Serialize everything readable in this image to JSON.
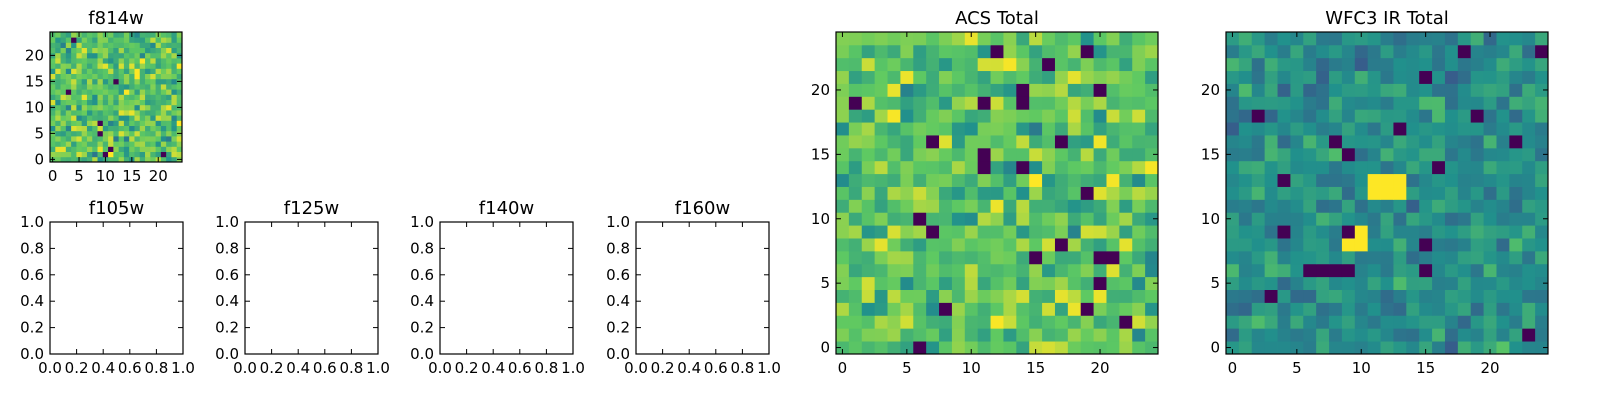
{
  "colors": {
    "viridis": [
      "#440154",
      "#3b528b",
      "#21918c",
      "#5ec962",
      "#fde725"
    ]
  },
  "chart_data": [
    {
      "type": "heatmap",
      "title": "f814w",
      "xticks": [
        "0",
        "5",
        "10",
        "15",
        "20"
      ],
      "yticks": [
        "0",
        "5",
        "10",
        "15",
        "20"
      ],
      "xlim": [
        -0.5,
        24.5
      ],
      "ylim": [
        -0.5,
        24.5
      ],
      "grid_size": [
        25,
        25
      ],
      "colormap": "viridis",
      "value_range": [
        0,
        1
      ],
      "typical_value": 0.72,
      "spread": 0.17,
      "dark_outlier_fraction": 0.02
    },
    {
      "type": "scatter",
      "title": "f105w",
      "xticks": [
        "0.0",
        "0.2",
        "0.4",
        "0.6",
        "0.8",
        "1.0"
      ],
      "yticks": [
        "0.0",
        "0.2",
        "0.4",
        "0.6",
        "0.8",
        "1.0"
      ],
      "xlim": [
        0,
        1
      ],
      "ylim": [
        0,
        1
      ],
      "series": []
    },
    {
      "type": "scatter",
      "title": "f125w",
      "xticks": [
        "0.0",
        "0.2",
        "0.4",
        "0.6",
        "0.8",
        "1.0"
      ],
      "yticks": [
        "0.0",
        "0.2",
        "0.4",
        "0.6",
        "0.8",
        "1.0"
      ],
      "xlim": [
        0,
        1
      ],
      "ylim": [
        0,
        1
      ],
      "series": []
    },
    {
      "type": "scatter",
      "title": "f140w",
      "xticks": [
        "0.0",
        "0.2",
        "0.4",
        "0.6",
        "0.8",
        "1.0"
      ],
      "yticks": [
        "0.0",
        "0.2",
        "0.4",
        "0.6",
        "0.8",
        "1.0"
      ],
      "xlim": [
        0,
        1
      ],
      "ylim": [
        0,
        1
      ],
      "series": []
    },
    {
      "type": "scatter",
      "title": "f160w",
      "xticks": [
        "0.0",
        "0.2",
        "0.4",
        "0.6",
        "0.8",
        "1.0"
      ],
      "yticks": [
        "0.0",
        "0.2",
        "0.4",
        "0.6",
        "0.8",
        "1.0"
      ],
      "xlim": [
        0,
        1
      ],
      "ylim": [
        0,
        1
      ],
      "series": []
    },
    {
      "type": "heatmap",
      "title": "ACS Total",
      "xticks": [
        "0",
        "5",
        "10",
        "15",
        "20"
      ],
      "yticks": [
        "0",
        "5",
        "10",
        "15",
        "20"
      ],
      "xlim": [
        -0.5,
        24.5
      ],
      "ylim": [
        -0.5,
        24.5
      ],
      "grid_size": [
        25,
        25
      ],
      "colormap": "viridis",
      "value_range": [
        0,
        1
      ],
      "typical_value": 0.72,
      "spread": 0.17,
      "dark_outlier_fraction": 0.035
    },
    {
      "type": "heatmap",
      "title": "WFC3 IR Total",
      "xticks": [
        "0",
        "5",
        "10",
        "15",
        "20"
      ],
      "yticks": [
        "0",
        "5",
        "10",
        "15",
        "20"
      ],
      "xlim": [
        -0.5,
        24.5
      ],
      "ylim": [
        -0.5,
        24.5
      ],
      "grid_size": [
        25,
        25
      ],
      "colormap": "viridis",
      "value_range": [
        0,
        1
      ],
      "typical_value": 0.5,
      "spread": 0.12,
      "dark_outlier_fraction": 0.025,
      "bright_cells": [
        [
          11,
          12
        ],
        [
          12,
          12
        ],
        [
          12,
          13
        ],
        [
          13,
          13
        ],
        [
          13,
          12
        ],
        [
          11,
          13
        ],
        [
          10,
          8
        ],
        [
          9,
          8
        ],
        [
          10,
          9
        ]
      ]
    }
  ]
}
